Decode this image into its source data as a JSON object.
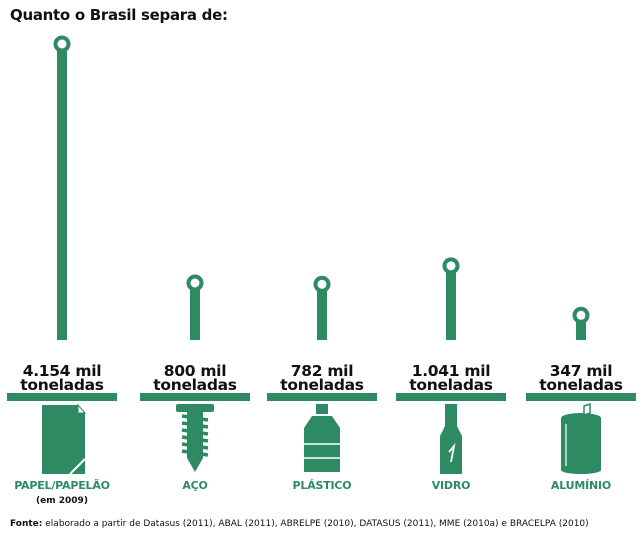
{
  "chart_data": {
    "type": "bar",
    "title": "Quanto o Brasil separa de:",
    "categories": [
      "PAPEL/PAPELÃO",
      "AÇO",
      "PLÁSTICO",
      "VIDRO",
      "ALUMÍNIO"
    ],
    "category_notes": [
      "(em 2009)",
      "",
      "",
      "",
      ""
    ],
    "values": [
      4154,
      800,
      782,
      1041,
      347
    ],
    "value_labels": [
      "4.154 mil",
      "800 mil",
      "782 mil",
      "1.041 mil",
      "347 mil"
    ],
    "unit_label": "toneladas",
    "unit": "mil toneladas",
    "icons": [
      "paper-icon",
      "screw-icon",
      "plastic-bottle-icon",
      "glass-bottle-icon",
      "aluminum-can-icon"
    ],
    "colors": {
      "bar": "#2e8a63",
      "category_text": "#2e8a63",
      "text": "#111111"
    },
    "source_label": "Fonte:",
    "source_text": "elaborado a partir de Datasus (2011), ABAL (2011), ABRELPE (2010), DATASUS (2011), MME (2010a) e BRACELPA (2010)"
  }
}
